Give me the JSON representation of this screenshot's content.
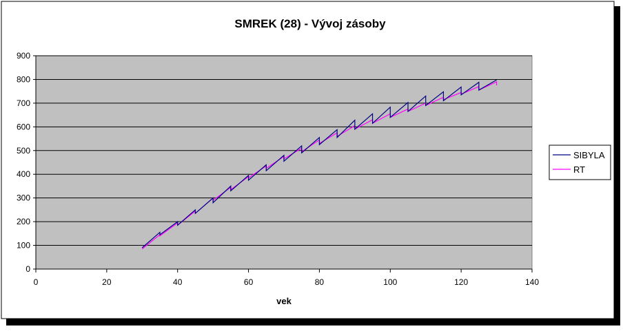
{
  "chart_data": {
    "type": "line",
    "title": "SMREK (28) - Vývoj zásoby",
    "xlabel": "vek",
    "ylabel": "",
    "xlim": [
      0,
      140
    ],
    "ylim": [
      0,
      900
    ],
    "x_ticks": [
      0,
      20,
      40,
      60,
      80,
      100,
      120,
      140
    ],
    "y_ticks": [
      0,
      100,
      200,
      300,
      400,
      500,
      600,
      700,
      800,
      900
    ],
    "grid": "horizontal",
    "legend_position": "right",
    "colors": {
      "plot_background": "#c0c0c0",
      "SIBYLA": "#000080",
      "RT": "#ff00ff"
    },
    "series": [
      {
        "name": "SIBYLA",
        "x": [
          30,
          35,
          35,
          40,
          40,
          45,
          45,
          50,
          50,
          55,
          55,
          60,
          60,
          65,
          65,
          70,
          70,
          75,
          75,
          80,
          80,
          85,
          85,
          90,
          90,
          95,
          95,
          100,
          100,
          105,
          105,
          110,
          110,
          115,
          115,
          120,
          120,
          125,
          125,
          130
        ],
        "y": [
          90,
          155,
          145,
          200,
          185,
          250,
          235,
          300,
          280,
          350,
          330,
          395,
          375,
          440,
          415,
          480,
          455,
          520,
          490,
          555,
          525,
          588,
          555,
          628,
          590,
          655,
          615,
          683,
          640,
          703,
          665,
          730,
          690,
          748,
          710,
          768,
          735,
          788,
          755,
          798
        ]
      },
      {
        "name": "RT",
        "x": [
          30,
          35,
          35,
          40,
          40,
          45,
          45,
          50,
          50,
          55,
          55,
          60,
          60,
          65,
          65,
          70,
          70,
          75,
          75,
          80,
          80,
          85,
          85,
          90,
          90,
          95,
          95,
          100,
          100,
          105,
          105,
          110,
          110,
          115,
          115,
          120,
          120,
          125,
          125,
          130,
          130
        ],
        "y": [
          85,
          145,
          140,
          195,
          185,
          245,
          235,
          300,
          290,
          345,
          335,
          390,
          385,
          435,
          425,
          475,
          465,
          510,
          495,
          545,
          530,
          575,
          560,
          605,
          590,
          630,
          615,
          655,
          640,
          675,
          665,
          700,
          690,
          725,
          715,
          745,
          738,
          770,
          755,
          790,
          775
        ]
      }
    ]
  }
}
